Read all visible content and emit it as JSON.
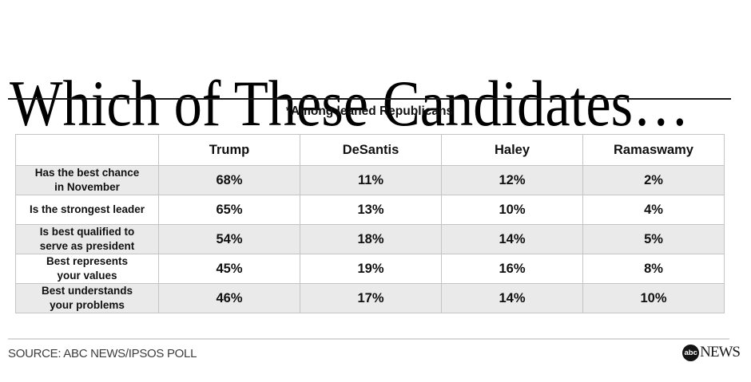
{
  "title": "Which of These Candidates…",
  "subtitle": "*Among leaned Republicans",
  "table": {
    "columns": [
      "Trump",
      "DeSantis",
      "Haley",
      "Ramaswamy"
    ],
    "rows": [
      {
        "label": "Has the best chance\nin November",
        "values": [
          "68%",
          "11%",
          "12%",
          "2%"
        ]
      },
      {
        "label": "Is the strongest leader",
        "values": [
          "65%",
          "13%",
          "10%",
          "4%"
        ]
      },
      {
        "label": "Is best qualified to\nserve as president",
        "values": [
          "54%",
          "18%",
          "14%",
          "5%"
        ]
      },
      {
        "label": "Best represents\nyour values",
        "values": [
          "45%",
          "19%",
          "16%",
          "8%"
        ]
      },
      {
        "label": "Best understands\nyour problems",
        "values": [
          "46%",
          "17%",
          "14%",
          "10%"
        ]
      }
    ]
  },
  "footer": {
    "source": "SOURCE: ABC NEWS/IPSOS POLL",
    "logo_abc": "abc",
    "logo_news": "NEWS"
  },
  "colors": {
    "row_shade": "#eaeaea",
    "border": "#c4c4c4",
    "rule_dark": "#1a1a1a",
    "rule_light": "#dadada",
    "source_text": "#3d3d3d"
  },
  "chart_data": {
    "type": "table",
    "title": "Which of These Candidates…",
    "subtitle": "*Among leaned Republicans",
    "columns": [
      "Trump",
      "DeSantis",
      "Haley",
      "Ramaswamy"
    ],
    "row_labels": [
      "Has the best chance in November",
      "Is the strongest leader",
      "Is best qualified to serve as president",
      "Best represents your values",
      "Best understands your problems"
    ],
    "values_percent": [
      [
        68,
        11,
        12,
        2
      ],
      [
        65,
        13,
        10,
        4
      ],
      [
        54,
        18,
        14,
        5
      ],
      [
        45,
        19,
        16,
        8
      ],
      [
        46,
        17,
        14,
        10
      ]
    ],
    "source": "SOURCE: ABC NEWS/IPSOS POLL"
  }
}
